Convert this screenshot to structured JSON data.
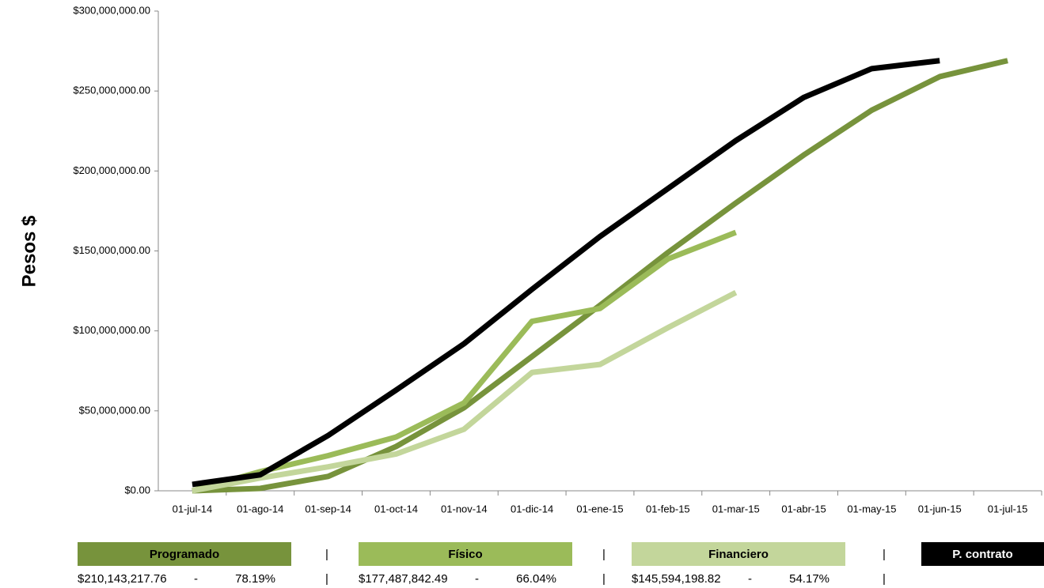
{
  "chart_data": {
    "type": "line",
    "y_label": "Pesos $",
    "categories": [
      "01-jul-14",
      "01-ago-14",
      "01-sep-14",
      "01-oct-14",
      "01-nov-14",
      "01-dic-14",
      "01-ene-15",
      "01-feb-15",
      "01-mar-15",
      "01-abr-15",
      "01-may-15",
      "01-jun-15",
      "01-jul-15"
    ],
    "series": [
      {
        "name": "Programado",
        "color": "#77933c",
        "values": [
          0,
          1500000,
          9000000,
          27700000,
          52000000,
          84000000,
          116000000,
          149000000,
          180000000,
          210000000,
          238000000,
          259000000,
          269000000
        ],
        "amount": "$210,143,217.76",
        "percent": "78.19%"
      },
      {
        "name": "Físico",
        "color": "#9bbb59",
        "values": [
          0,
          12000000,
          22000000,
          33600000,
          55000000,
          106000000,
          114000000,
          145000000,
          161600000,
          null,
          null,
          null,
          null
        ],
        "amount": "$177,487,842.49",
        "percent": "66.04%"
      },
      {
        "name": "Financiero",
        "color": "#c3d69b",
        "values": [
          0,
          8000000,
          15000000,
          23000000,
          38500000,
          74000000,
          79000000,
          102000000,
          124000000,
          null,
          null,
          null,
          null
        ],
        "amount": "$145,594,198.82",
        "percent": "54.17%"
      },
      {
        "name": "P. contrato",
        "color": "#000000",
        "values": [
          4000000,
          10000000,
          34600000,
          63000000,
          92000000,
          126000000,
          159000000,
          189000000,
          219000000,
          246000000,
          264000000,
          269000000,
          null
        ]
      }
    ],
    "summary_dash": "-",
    "separator": "|",
    "ylim": [
      0,
      300000000
    ],
    "yticks": [
      {
        "value": 0,
        "label": "$0.00"
      },
      {
        "value": 50000000,
        "label": "$50,000,000.00"
      },
      {
        "value": 100000000,
        "label": "$100,000,000.00"
      },
      {
        "value": 150000000,
        "label": "$150,000,000.00"
      },
      {
        "value": 200000000,
        "label": "$200,000,000.00"
      },
      {
        "value": 250000000,
        "label": "$250,000,000.00"
      },
      {
        "value": 300000000,
        "label": "$300,000,000.00"
      }
    ],
    "grid": false
  }
}
